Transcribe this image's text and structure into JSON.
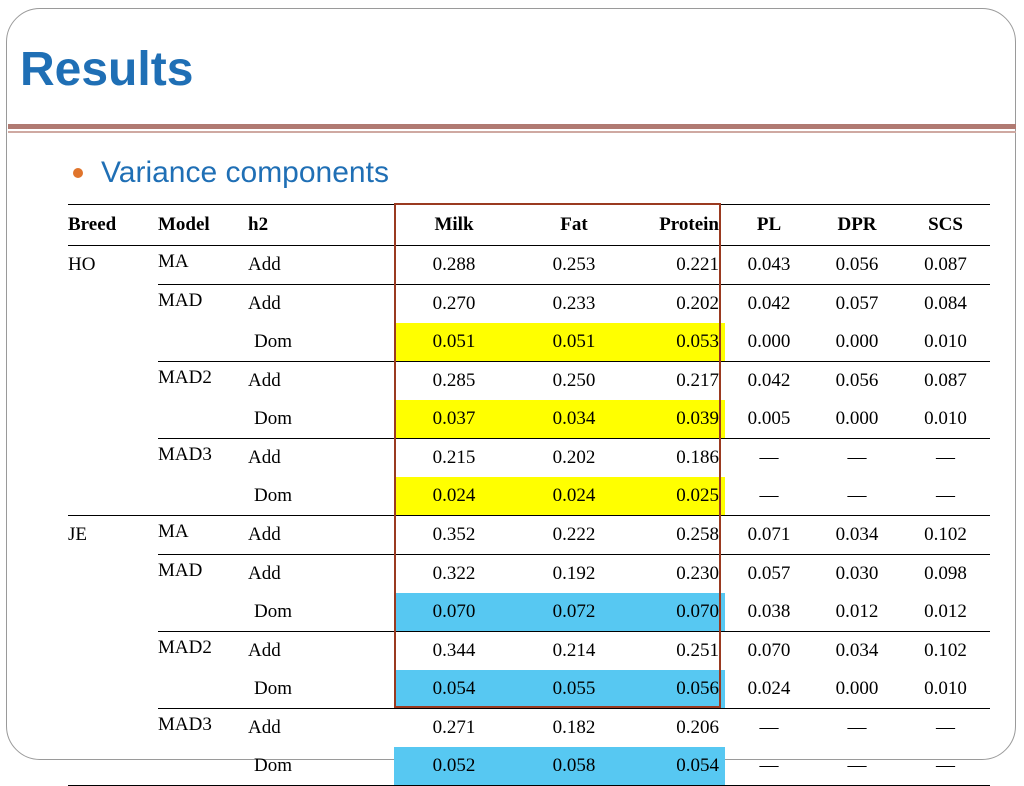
{
  "slide": {
    "title": "Results",
    "bullet": "Variance components"
  },
  "colors": {
    "title": "#1f6fb5",
    "bullet_dot": "#e0742b",
    "highlight_yellow": "#ffff00",
    "highlight_blue": "#57c8f2",
    "outline_box": "#9a3a20"
  },
  "table": {
    "headers": [
      "Breed",
      "Model",
      "h2",
      "Milk",
      "Fat",
      "Protein",
      "PL",
      "DPR",
      "SCS"
    ],
    "rows": [
      {
        "breed": "HO",
        "model": "MA",
        "h2": "Add",
        "milk": "0.288",
        "fat": "0.253",
        "protein": "0.221",
        "pl": "0.043",
        "dpr": "0.056",
        "scs": "0.087"
      },
      {
        "breed": "",
        "model": "MAD",
        "h2": "Add",
        "milk": "0.270",
        "fat": "0.233",
        "protein": "0.202",
        "pl": "0.042",
        "dpr": "0.057",
        "scs": "0.084"
      },
      {
        "breed": "",
        "model": "",
        "h2": "Dom",
        "milk": "0.051",
        "fat": "0.051",
        "protein": "0.053",
        "pl": "0.000",
        "dpr": "0.000",
        "scs": "0.010",
        "highlight": "yellow"
      },
      {
        "breed": "",
        "model": "MAD2",
        "h2": "Add",
        "milk": "0.285",
        "fat": "0.250",
        "protein": "0.217",
        "pl": "0.042",
        "dpr": "0.056",
        "scs": "0.087"
      },
      {
        "breed": "",
        "model": "",
        "h2": "Dom",
        "milk": "0.037",
        "fat": "0.034",
        "protein": "0.039",
        "pl": "0.005",
        "dpr": "0.000",
        "scs": "0.010",
        "highlight": "yellow"
      },
      {
        "breed": "",
        "model": "MAD3",
        "h2": "Add",
        "milk": "0.215",
        "fat": "0.202",
        "protein": "0.186",
        "pl": "—",
        "dpr": "—",
        "scs": "—"
      },
      {
        "breed": "",
        "model": "",
        "h2": "Dom",
        "milk": "0.024",
        "fat": "0.024",
        "protein": "0.025",
        "pl": "—",
        "dpr": "—",
        "scs": "—",
        "highlight": "yellow"
      },
      {
        "breed": "JE",
        "model": "MA",
        "h2": "Add",
        "milk": "0.352",
        "fat": "0.222",
        "protein": "0.258",
        "pl": "0.071",
        "dpr": "0.034",
        "scs": "0.102"
      },
      {
        "breed": "",
        "model": "MAD",
        "h2": "Add",
        "milk": "0.322",
        "fat": "0.192",
        "protein": "0.230",
        "pl": "0.057",
        "dpr": "0.030",
        "scs": "0.098"
      },
      {
        "breed": "",
        "model": "",
        "h2": "Dom",
        "milk": "0.070",
        "fat": "0.072",
        "protein": "0.070",
        "pl": "0.038",
        "dpr": "0.012",
        "scs": "0.012",
        "highlight": "blue"
      },
      {
        "breed": "",
        "model": "MAD2",
        "h2": "Add",
        "milk": "0.344",
        "fat": "0.214",
        "protein": "0.251",
        "pl": "0.070",
        "dpr": "0.034",
        "scs": "0.102"
      },
      {
        "breed": "",
        "model": "",
        "h2": "Dom",
        "milk": "0.054",
        "fat": "0.055",
        "protein": "0.056",
        "pl": "0.024",
        "dpr": "0.000",
        "scs": "0.010",
        "highlight": "blue"
      },
      {
        "breed": "",
        "model": "MAD3",
        "h2": "Add",
        "milk": "0.271",
        "fat": "0.182",
        "protein": "0.206",
        "pl": "—",
        "dpr": "—",
        "scs": "—"
      },
      {
        "breed": "",
        "model": "",
        "h2": "Dom",
        "milk": "0.052",
        "fat": "0.058",
        "protein": "0.054",
        "pl": "—",
        "dpr": "—",
        "scs": "—",
        "highlight": "blue"
      }
    ]
  }
}
